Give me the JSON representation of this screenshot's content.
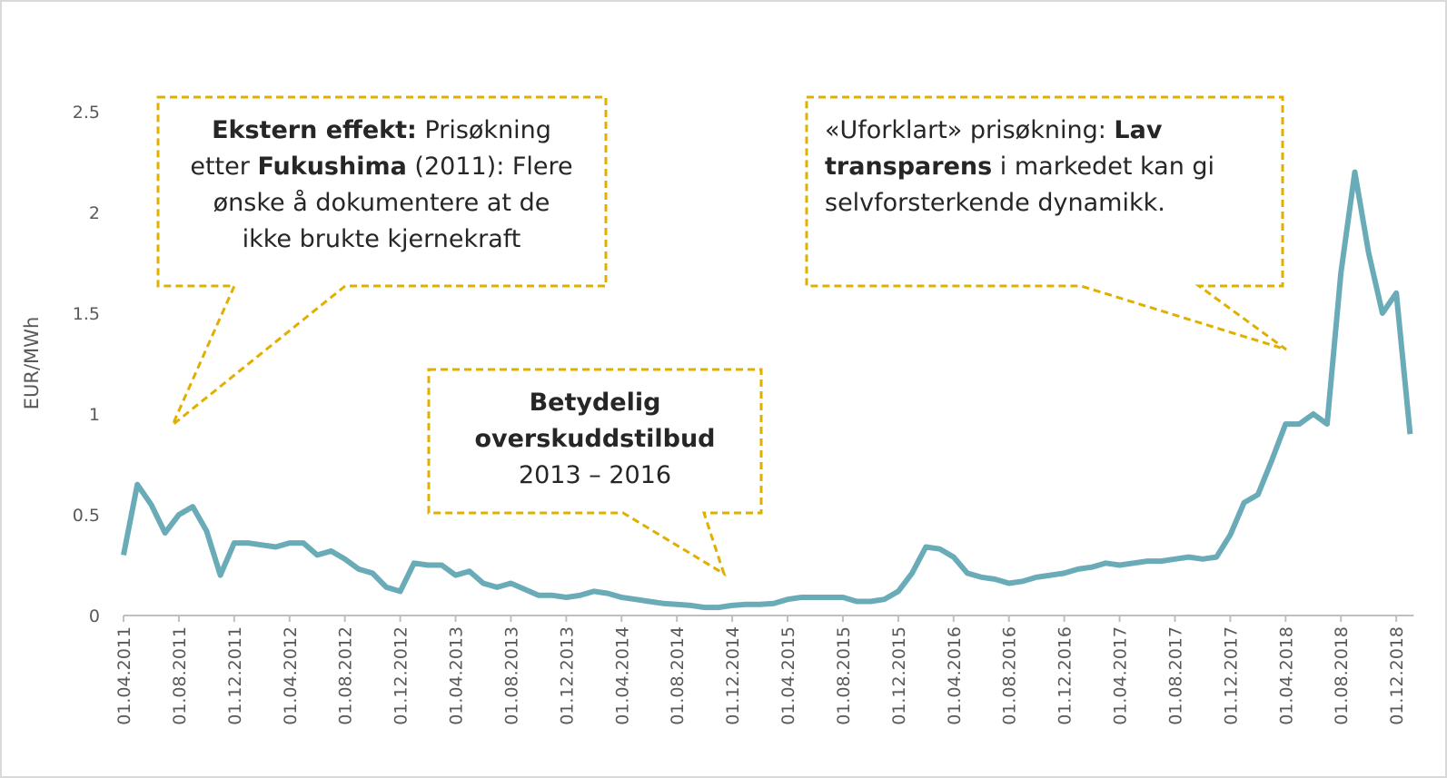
{
  "chart_data": {
    "type": "line",
    "y_label": "EUR/MWh",
    "categories": [
      "01.04.2011",
      null,
      null,
      null,
      "01.08.2011",
      null,
      null,
      null,
      "01.12.2011",
      null,
      null,
      null,
      "01.04.2012",
      null,
      null,
      null,
      "01.08.2012",
      null,
      null,
      null,
      "01.12.2012",
      null,
      null,
      null,
      "01.04.2013",
      null,
      null,
      null,
      "01.08.2013",
      null,
      null,
      null,
      "01.12.2013",
      null,
      null,
      null,
      "01.04.2014",
      null,
      null,
      null,
      "01.08.2014",
      null,
      null,
      null,
      "01.12.2014",
      null,
      null,
      null,
      "01.04.2015",
      null,
      null,
      null,
      "01.08.2015",
      null,
      null,
      null,
      "01.12.2015",
      null,
      null,
      null,
      "01.04.2016",
      null,
      null,
      null,
      "01.08.2016",
      null,
      null,
      null,
      "01.12.2016",
      null,
      null,
      null,
      "01.04.2017",
      null,
      null,
      null,
      "01.08.2017",
      null,
      null,
      null,
      "01.12.2017",
      null,
      null,
      null,
      "01.04.2018",
      null,
      null,
      null,
      "01.08.2018",
      null,
      null,
      null,
      "01.12.2018",
      null
    ],
    "values": [
      0.3,
      0.65,
      0.55,
      0.41,
      0.5,
      0.54,
      0.42,
      0.2,
      0.36,
      0.36,
      0.35,
      0.34,
      0.36,
      0.36,
      0.3,
      0.32,
      0.28,
      0.23,
      0.21,
      0.14,
      0.12,
      0.26,
      0.25,
      0.25,
      0.2,
      0.22,
      0.16,
      0.14,
      0.16,
      0.13,
      0.1,
      0.1,
      0.09,
      0.1,
      0.12,
      0.11,
      0.09,
      0.08,
      0.07,
      0.06,
      0.055,
      0.05,
      0.04,
      0.04,
      0.05,
      0.055,
      0.055,
      0.06,
      0.08,
      0.09,
      0.09,
      0.09,
      0.09,
      0.07,
      0.07,
      0.08,
      0.12,
      0.21,
      0.34,
      0.33,
      0.29,
      0.21,
      0.19,
      0.18,
      0.16,
      0.17,
      0.19,
      0.2,
      0.21,
      0.23,
      0.24,
      0.26,
      0.25,
      0.26,
      0.27,
      0.27,
      0.28,
      0.29,
      0.28,
      0.29,
      0.4,
      0.56,
      0.6,
      0.77,
      0.95,
      0.95,
      1.0,
      0.95,
      1.7,
      2.2,
      1.8,
      1.5,
      1.6,
      0.9
    ],
    "color": "#6aabb8",
    "ylim": [
      0,
      2.5
    ],
    "yticks": [
      0,
      0.5,
      1,
      1.5,
      2,
      2.5
    ],
    "annotations": [
      {
        "lines": [
          [
            {
              "text": "Ekstern effekt:",
              "bold": true
            },
            {
              "text": " Prisøkning"
            }
          ],
          [
            {
              "text": "etter "
            },
            {
              "text": "Fukushima",
              "bold": true
            },
            {
              "text": " (2011): Flere"
            }
          ],
          [
            {
              "text": "ønske å dokumentere at de"
            }
          ],
          [
            {
              "text": "ikke brukte kjernekraft"
            }
          ]
        ]
      },
      {
        "lines": [
          [
            {
              "text": "Betydelig",
              "bold": true
            }
          ],
          [
            {
              "text": "overskuddstilbud",
              "bold": true
            }
          ],
          [
            {
              "text": "2013 – 2016"
            }
          ]
        ]
      },
      {
        "lines": [
          [
            {
              "text": "«Uforklart» prisøkning: "
            },
            {
              "text": "Lav",
              "bold": true
            }
          ],
          [
            {
              "text": "transparens",
              "bold": true
            },
            {
              "text": " i markedet kan gi"
            }
          ],
          [
            {
              "text": "selvforsterkende dynamikk."
            }
          ]
        ]
      }
    ]
  }
}
